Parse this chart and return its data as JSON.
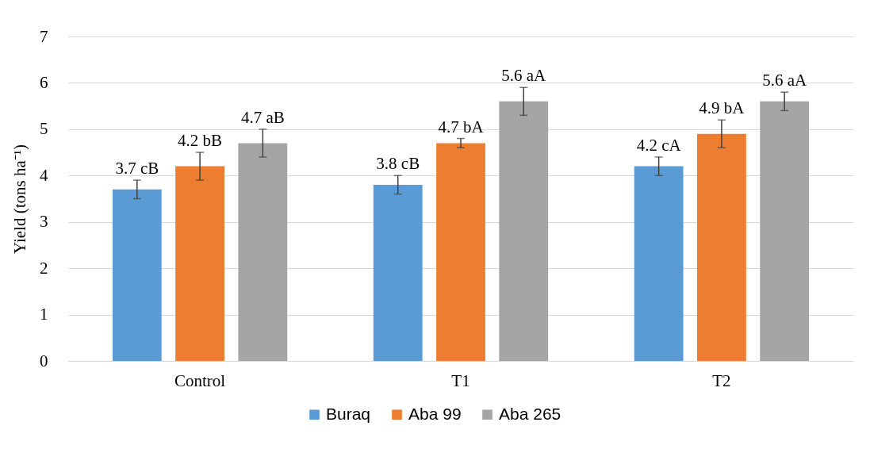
{
  "chart_data": {
    "type": "bar",
    "ylabel": "Yield (tons ha⁻¹)",
    "categories": [
      "Control",
      "T1",
      "T2"
    ],
    "series": [
      {
        "name": "Buraq",
        "color": "#5b9bd5",
        "values": [
          3.7,
          3.8,
          4.2
        ],
        "errors": [
          0.2,
          0.2,
          0.2
        ],
        "value_labels": [
          "3.7 cB",
          "3.8 cB",
          "4.2 cA"
        ]
      },
      {
        "name": "Aba 99",
        "color": "#ed7d31",
        "values": [
          4.2,
          4.7,
          4.9
        ],
        "errors": [
          0.3,
          0.1,
          0.3
        ],
        "value_labels": [
          "4.2 bB",
          "4.7 bA",
          "4.9 bA"
        ]
      },
      {
        "name": "Aba 265",
        "color": "#a5a5a5",
        "values": [
          4.7,
          5.6,
          5.6
        ],
        "errors": [
          0.3,
          0.3,
          0.2
        ],
        "value_labels": [
          "4.7 aB",
          "5.6 aA",
          "5.6 aA"
        ]
      }
    ],
    "ylim": [
      0,
      7
    ],
    "yticks": [
      0,
      1,
      2,
      3,
      4,
      5,
      6,
      7
    ],
    "grid": "y",
    "legend": "bottom"
  }
}
